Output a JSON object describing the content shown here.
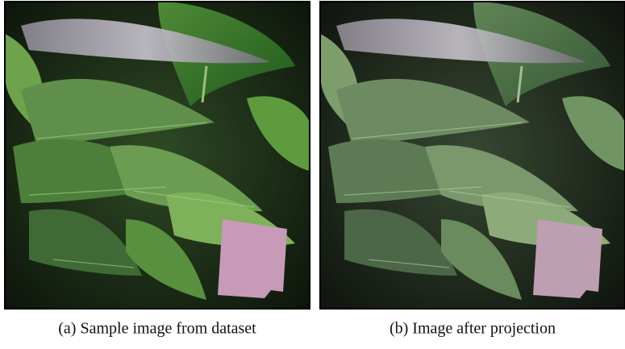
{
  "figure": {
    "subfigures": [
      {
        "caption": "(a) Sample image from dataset"
      },
      {
        "caption": "(b) Image after projection"
      }
    ]
  }
}
